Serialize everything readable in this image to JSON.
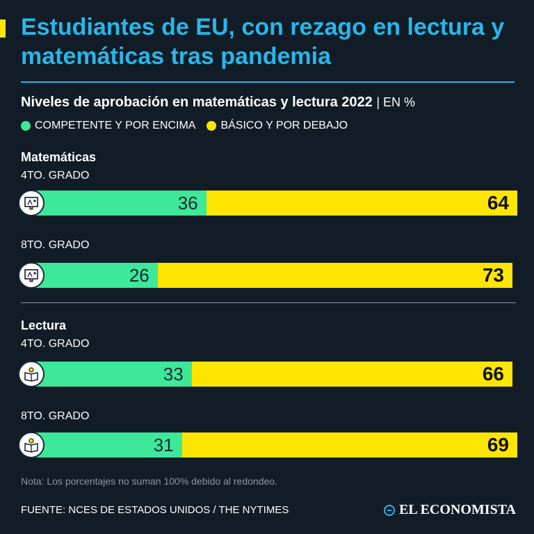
{
  "header": {
    "title": "Estudiantes de EU, con rezago en lectura y matemáticas tras pandemia",
    "subtitle": "Niveles de aprobación en matemáticas y lectura 2022",
    "unit": "| EN %"
  },
  "colors": {
    "background": "#111c27",
    "title": "#29b6e8",
    "competent": "#3ee89a",
    "basic": "#ffe600"
  },
  "chart_data": {
    "type": "bar",
    "stacked": true,
    "orientation": "horizontal",
    "legend": [
      {
        "label": "COMPETENTE Y POR ENCIMA",
        "color": "#3ee89a"
      },
      {
        "label": "BÁSICO Y POR DEBAJO",
        "color": "#ffe600"
      }
    ],
    "sections": [
      {
        "title": "Matemáticas",
        "rows": [
          {
            "label": "4TO. GRADO",
            "icon": "math-chalkboard-icon",
            "competent": 36,
            "basic": 64
          },
          {
            "label": "8TO. GRADO",
            "icon": "math-chalkboard-icon",
            "competent": 26,
            "basic": 73
          }
        ]
      },
      {
        "title": "Lectura",
        "rows": [
          {
            "label": "4TO. GRADO",
            "icon": "book-lightbulb-icon",
            "competent": 33,
            "basic": 66
          },
          {
            "label": "8TO. GRADO",
            "icon": "book-lightbulb-icon",
            "competent": 31,
            "basic": 69
          }
        ]
      }
    ]
  },
  "footer": {
    "note": "Nota: Los porcentajes no suman 100% debido al redondeo.",
    "source": "FUENTE: NCES DE ESTADOS UNIDOS / THE NYTIMES",
    "brand": "EL ECONOMISTA"
  }
}
